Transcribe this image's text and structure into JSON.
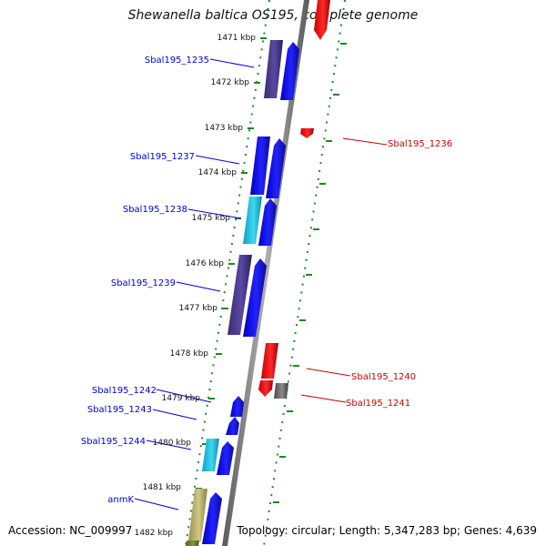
{
  "title": "Shewanella baltica OS195, complete genome",
  "accession_text": "Accession: NC_009997",
  "topology_text": "Topology: circular; Length: 5,347,283 bp; Genes: 4,639",
  "kbp_ticks": [
    "1471 kbp",
    "1472 kbp",
    "1473 kbp",
    "1474 kbp",
    "1475 kbp",
    "1476 kbp",
    "1477 kbp",
    "1478 kbp",
    "1479 kbp",
    "1480 kbp",
    "1481 kbp",
    "1482 kbp"
  ],
  "genes": [
    {
      "label": "Sbal195_1235",
      "strand": "forward"
    },
    {
      "label": "Sbal195_1236",
      "strand": "reverse"
    },
    {
      "label": "Sbal195_1237",
      "strand": "forward"
    },
    {
      "label": "Sbal195_1238",
      "strand": "forward"
    },
    {
      "label": "Sbal195_1239",
      "strand": "forward"
    },
    {
      "label": "Sbal195_1240",
      "strand": "reverse"
    },
    {
      "label": "Sbal195_1241",
      "strand": "reverse"
    },
    {
      "label": "Sbal195_1242",
      "strand": "forward"
    },
    {
      "label": "Sbal195_1243",
      "strand": "forward"
    },
    {
      "label": "Sbal195_1244",
      "strand": "forward"
    },
    {
      "label": "anmK",
      "strand": "forward"
    }
  ],
  "colors": {
    "forward_cds": "#1010e8",
    "reverse_cds": "#e81010",
    "cog_purple": "#4a3a88",
    "cog_cyan": "#18b8d8",
    "cog_olive": "#b8b070",
    "cog_grey": "#666666",
    "backbone": "#888888",
    "dotted_ring": "#1e8a1e",
    "forward_label": "#0000cc",
    "reverse_label": "#cc0000"
  }
}
